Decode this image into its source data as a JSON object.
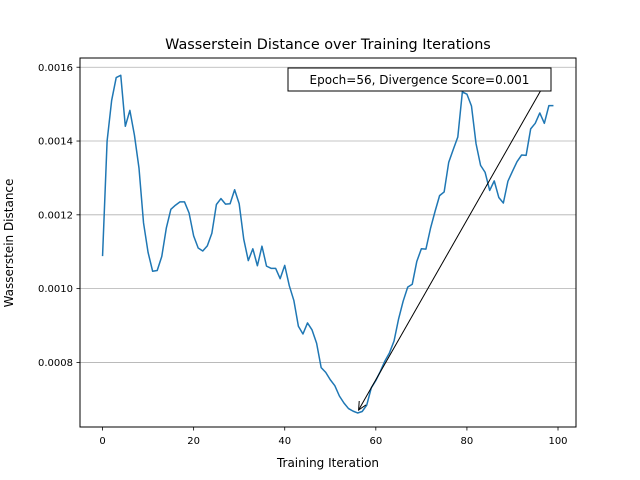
{
  "chart_data": {
    "type": "line",
    "title": "Wasserstein Distance over Training Iterations",
    "xlabel": "Training Iteration",
    "ylabel": "Wasserstein Distance",
    "xlim": [
      -4.95,
      103.95
    ],
    "ylim": [
      0.000625,
      0.001625
    ],
    "xticks": [
      0,
      20,
      40,
      60,
      80,
      100
    ],
    "xtick_labels": [
      "0",
      "20",
      "40",
      "60",
      "80",
      "100"
    ],
    "yticks": [
      0.0008,
      0.001,
      0.0012,
      0.0014,
      0.0016
    ],
    "ytick_labels": [
      "0.0008",
      "0.0010",
      "0.0012",
      "0.0014",
      "0.0016"
    ],
    "grid": "horizontal",
    "series": [
      {
        "color": "#1f77b4",
        "x": [
          0,
          1,
          2,
          3,
          4,
          5,
          6,
          7,
          8,
          9,
          10,
          11,
          12,
          13,
          14,
          15,
          16,
          17,
          18,
          19,
          20,
          21,
          22,
          23,
          24,
          25,
          26,
          27,
          28,
          29,
          30,
          31,
          32,
          33,
          34,
          35,
          36,
          37,
          38,
          39,
          40,
          41,
          42,
          43,
          44,
          45,
          46,
          47,
          48,
          49,
          50,
          51,
          52,
          53,
          54,
          55,
          56,
          57,
          58,
          59,
          60,
          61,
          62,
          63,
          64,
          65,
          66,
          67,
          68,
          69,
          70,
          71,
          72,
          73,
          74,
          75,
          76,
          77,
          78,
          79,
          80,
          81,
          82,
          83,
          84,
          85,
          86,
          87,
          88,
          89,
          90,
          91,
          92,
          93,
          94,
          95,
          96,
          97,
          98,
          99
        ],
        "values": [
          0.001088,
          0.0014,
          0.00151,
          0.001572,
          0.001578,
          0.00144,
          0.001483,
          0.001416,
          0.001327,
          0.001178,
          0.001098,
          0.001047,
          0.001049,
          0.001087,
          0.001164,
          0.001215,
          0.001226,
          0.001235,
          0.001235,
          0.001205,
          0.001143,
          0.00111,
          0.001102,
          0.001116,
          0.00115,
          0.001228,
          0.001244,
          0.001229,
          0.00123,
          0.001268,
          0.00123,
          0.001134,
          0.001076,
          0.001108,
          0.001062,
          0.001115,
          0.001061,
          0.001055,
          0.001055,
          0.001027,
          0.001063,
          0.001008,
          0.000968,
          0.000898,
          0.000877,
          0.000907,
          0.000888,
          0.000852,
          0.000786,
          0.000773,
          0.000753,
          0.000737,
          0.000709,
          0.00069,
          0.000675,
          0.000668,
          0.000663,
          0.000667,
          0.000684,
          0.000731,
          0.000751,
          0.000776,
          0.000804,
          0.000826,
          0.000858,
          0.000918,
          0.000966,
          0.001004,
          0.001012,
          0.001074,
          0.001108,
          0.001107,
          0.001163,
          0.001209,
          0.001252,
          0.001262,
          0.001342,
          0.001377,
          0.001411,
          0.001533,
          0.001527,
          0.001495,
          0.001393,
          0.001334,
          0.001315,
          0.001266,
          0.001292,
          0.001247,
          0.001232,
          0.001291,
          0.001318,
          0.001344,
          0.001362,
          0.001361,
          0.001433,
          0.001448,
          0.001476,
          0.001448,
          0.001496,
          0.001496
        ]
      }
    ],
    "annotation": {
      "text": "Epoch=56, Divergence Score=0.001",
      "point": [
        56,
        0.000663
      ]
    }
  }
}
